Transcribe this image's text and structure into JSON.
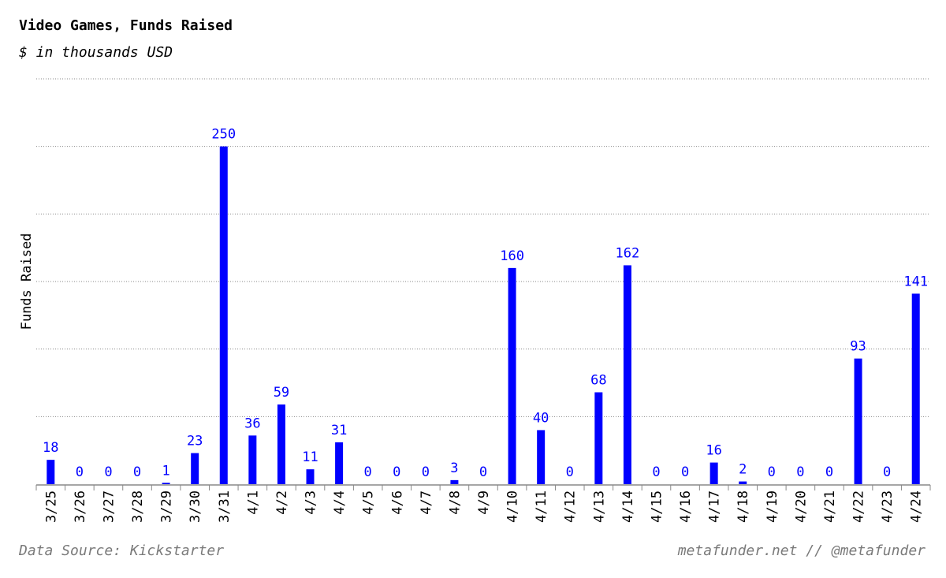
{
  "header": {
    "title": "Video Games, Funds Raised",
    "subtitle": "$ in thousands USD"
  },
  "footer": {
    "source": "Data Source: Kickstarter",
    "credit": "metafunder.net // @metafunder"
  },
  "colors": {
    "bar": "#0000ff",
    "grid": "#888888",
    "footer_text": "#7a7a7a"
  },
  "chart_data": {
    "type": "bar",
    "title": "Video Games, Funds Raised",
    "subtitle": "$ in thousands USD",
    "xlabel": "",
    "ylabel": "Funds Raised",
    "categories": [
      "3/25",
      "3/26",
      "3/27",
      "3/28",
      "3/29",
      "3/30",
      "3/31",
      "4/1",
      "4/2",
      "4/3",
      "4/4",
      "4/5",
      "4/6",
      "4/7",
      "4/8",
      "4/9",
      "4/10",
      "4/11",
      "4/12",
      "4/13",
      "4/14",
      "4/15",
      "4/16",
      "4/17",
      "4/18",
      "4/19",
      "4/20",
      "4/21",
      "4/22",
      "4/23",
      "4/24"
    ],
    "values": [
      18,
      0,
      0,
      0,
      1,
      23,
      250,
      36,
      59,
      11,
      31,
      0,
      0,
      0,
      3,
      0,
      160,
      40,
      0,
      68,
      162,
      0,
      0,
      16,
      2,
      0,
      0,
      0,
      93,
      0,
      141
    ],
    "ylim": [
      0,
      300
    ],
    "gridlines": [
      50,
      100,
      150,
      200,
      250,
      300
    ],
    "grid": true,
    "data_labels": true,
    "legend": "none"
  }
}
